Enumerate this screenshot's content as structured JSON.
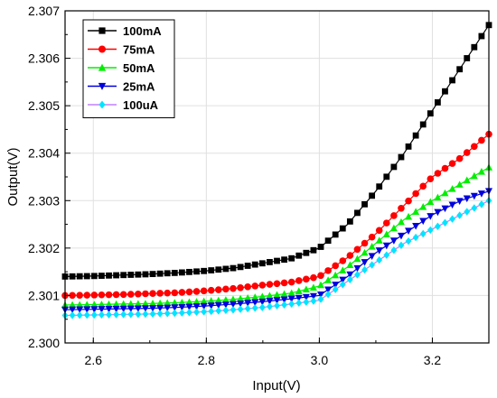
{
  "chart_data": {
    "type": "line",
    "title": "",
    "xlabel": "Input(V)",
    "ylabel": "Output(V)",
    "xlim": [
      2.55,
      3.3
    ],
    "ylim": [
      2.3,
      2.307
    ],
    "x_ticks": [
      2.6,
      2.8,
      3.0,
      3.2
    ],
    "x_tick_labels": [
      "2.6",
      "2.8",
      "3.0",
      "3.2"
    ],
    "y_ticks": [
      2.3,
      2.301,
      2.302,
      2.303,
      2.304,
      2.305,
      2.306,
      2.307
    ],
    "y_tick_labels": [
      "2.300",
      "2.301",
      "2.302",
      "2.303",
      "2.304",
      "2.305",
      "2.306",
      "2.307"
    ],
    "grid": true,
    "legend_position": "top-left",
    "x": [
      2.55,
      2.6,
      2.65,
      2.7,
      2.75,
      2.8,
      2.85,
      2.9,
      2.95,
      3.0,
      3.05,
      3.1,
      3.15,
      3.2,
      3.25,
      3.3
    ],
    "series": [
      {
        "name": "100mA",
        "color": "#000000",
        "marker": "square",
        "values": [
          2.3014,
          2.30141,
          2.30143,
          2.30145,
          2.30148,
          2.30152,
          2.30158,
          2.30168,
          2.30178,
          2.302,
          2.3025,
          2.3032,
          2.304,
          2.3049,
          2.3058,
          2.3067
        ]
      },
      {
        "name": "75mA",
        "color": "#ff0000",
        "marker": "circle",
        "values": [
          2.301,
          2.30101,
          2.30102,
          2.30104,
          2.30106,
          2.3011,
          2.30115,
          2.30122,
          2.30128,
          2.3014,
          2.3018,
          2.3023,
          2.3029,
          2.3035,
          2.3039,
          2.3044
        ]
      },
      {
        "name": "50mA",
        "color": "#00ee00",
        "marker": "triangle-up",
        "values": [
          2.3008,
          2.30081,
          2.30082,
          2.30083,
          2.30085,
          2.30088,
          2.30092,
          2.30098,
          2.30105,
          2.3012,
          2.3016,
          2.3021,
          2.3026,
          2.303,
          2.30335,
          2.3037
        ]
      },
      {
        "name": "25mA",
        "color": "#0000dd",
        "marker": "triangle-down",
        "values": [
          2.3007,
          2.30071,
          2.30072,
          2.30073,
          2.30075,
          2.30078,
          2.30082,
          2.30087,
          2.30093,
          2.301,
          2.3014,
          2.3019,
          2.3023,
          2.3027,
          2.303,
          2.3032
        ]
      },
      {
        "name": "100uA",
        "color": "#00e5ff",
        "line_color": "#c080ff",
        "marker": "diamond",
        "values": [
          2.30058,
          2.30059,
          2.3006,
          2.30061,
          2.30063,
          2.30066,
          2.3007,
          2.30075,
          2.30082,
          2.3009,
          2.3013,
          2.3017,
          2.3021,
          2.3024,
          2.3027,
          2.303
        ]
      }
    ]
  }
}
